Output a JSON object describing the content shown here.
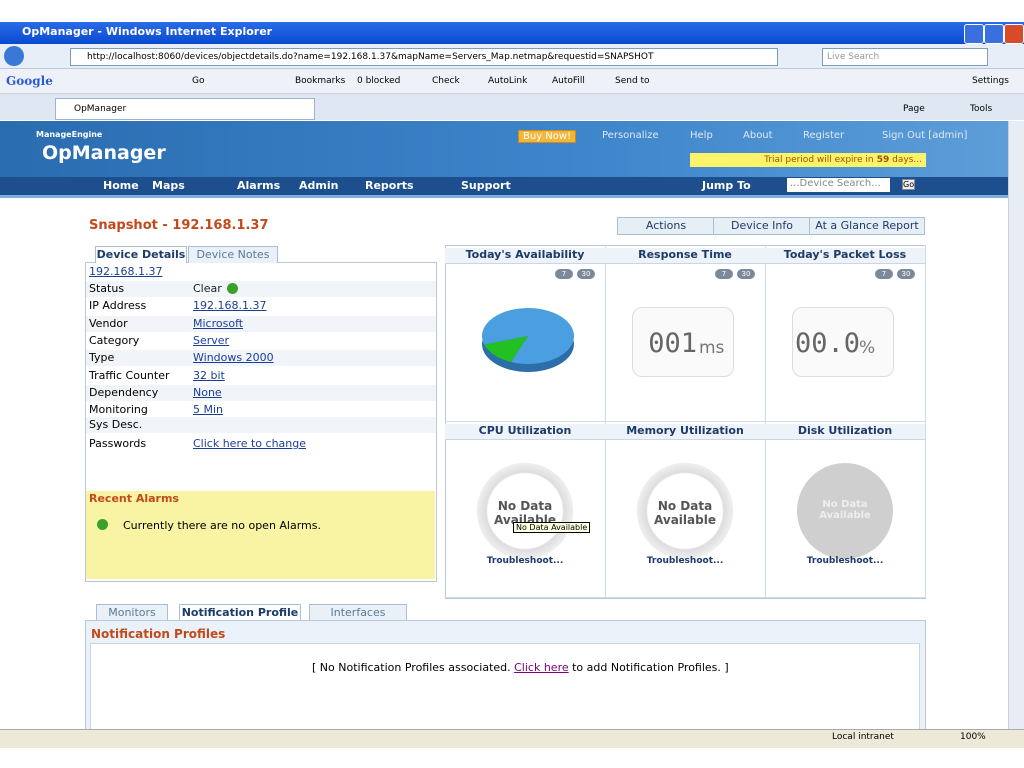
{
  "window": {
    "title": "OpManager - Windows Internet Explorer",
    "url": "http://localhost:8060/devices/objectdetails.do?name=192.168.1.37&mapName=Servers_Map.netmap&requestid=SNAPSHOT",
    "search": "Live Search"
  },
  "toolbar": {
    "google": "Google",
    "go": "Go",
    "bookmarks": "Bookmarks",
    "blocked": "0 blocked",
    "check": "Check",
    "autolink": "AutoLink",
    "autofill": "AutoFill",
    "sendto": "Send to",
    "settings": "Settings"
  },
  "tab": "OpManager",
  "command_bar": [
    "Page",
    "Tools"
  ],
  "header": {
    "brand": "ManageEngine",
    "product": "OpManager",
    "links": [
      "Buy Now!",
      "Personalize",
      "Help",
      "About",
      "Register",
      "Sign Out [admin]"
    ],
    "trial_text": "Trial period will expire in",
    "trial_days": "59",
    "trial_unit": "days..."
  },
  "nav": {
    "items": [
      "Home",
      "Maps",
      "Alarms",
      "Admin",
      "Reports",
      "Support"
    ],
    "jump": "Jump To",
    "search": "...Device Search...",
    "go": "Go"
  },
  "snapshot": {
    "title": "Snapshot - 192.168.1.37",
    "actions": [
      "Actions",
      "Device Info",
      "At a Glance Report"
    ]
  },
  "device_tabs": [
    "Device Details",
    "Device Notes"
  ],
  "device_name": "192.168.1.37",
  "details": [
    {
      "label": "Status",
      "value": "Clear"
    },
    {
      "label": "IP Address",
      "value": "192.168.1.37"
    },
    {
      "label": "Vendor",
      "value": "Microsoft"
    },
    {
      "label": "Category",
      "value": "Server"
    },
    {
      "label": "Type",
      "value": "Windows 2000"
    },
    {
      "label": "Traffic Counter",
      "value": "32 bit"
    },
    {
      "label": "Dependency",
      "value": "None"
    },
    {
      "label": "Monitoring",
      "value": "5  Min"
    },
    {
      "label": "Sys Desc."
    },
    {
      "label": "Passwords",
      "value": "Click here to change"
    }
  ],
  "recent_alarms": {
    "title": "Recent Alarms",
    "message": "Currently there are no open Alarms."
  },
  "periods": [
    "7",
    "30"
  ],
  "availability_pie": {
    "values": [
      86,
      14
    ],
    "colors": [
      "#4a9fe0",
      "#22c022"
    ]
  },
  "panels": [
    {
      "title": "Today's Availability"
    },
    {
      "title": "Response Time",
      "value": "001",
      "unit": "ms"
    },
    {
      "title": "Today's Packet Loss",
      "value": "00.0",
      "unit": "%"
    },
    {
      "title": "CPU Utilization",
      "message": "No Data Available",
      "tooltip": "No Data Available",
      "link": "Troubleshoot..."
    },
    {
      "title": "Memory Utilization",
      "message": "No Data Available",
      "link": "Troubleshoot..."
    },
    {
      "title": "Disk Utilization",
      "message": "No Data Available",
      "link": "Troubleshoot..."
    }
  ],
  "bottom_tabs": [
    "Monitors",
    "Notification Profile",
    "Interfaces"
  ],
  "notification": {
    "title": "Notification Profiles",
    "pre": "[ No Notification Profiles associated. ",
    "link": "Click here",
    "post": " to add Notification Profiles. ]"
  },
  "status": {
    "zone": "Local intranet",
    "zoom": "100%"
  }
}
